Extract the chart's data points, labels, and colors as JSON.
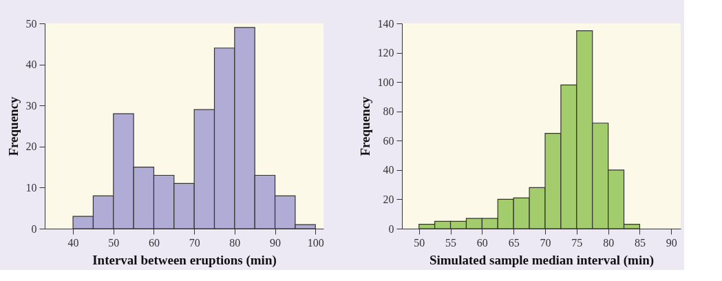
{
  "chart_data": [
    {
      "type": "histogram",
      "xlabel": "Interval between eruptions (min)",
      "ylabel": "Frequency",
      "bins": [
        40,
        45,
        50,
        55,
        60,
        65,
        70,
        75,
        80,
        85,
        90,
        95,
        100
      ],
      "values": [
        3,
        8,
        28,
        15,
        13,
        11,
        29,
        44,
        49,
        13,
        8,
        1
      ],
      "color": "#b0acd6",
      "xlim": [
        33,
        102
      ],
      "xticks": [
        40,
        50,
        60,
        70,
        80,
        90,
        100
      ],
      "ylim": [
        0,
        50
      ],
      "yticks": [
        0,
        10,
        20,
        30,
        40,
        50
      ],
      "grid": false
    },
    {
      "type": "histogram",
      "xlabel": "Simulated sample median interval (min)",
      "ylabel": "Frequency",
      "bins": [
        50,
        52.5,
        55,
        57.5,
        60,
        62.5,
        65,
        67.5,
        70,
        72.5,
        75,
        77.5,
        80,
        82.5,
        85
      ],
      "values": [
        3,
        5,
        5,
        7,
        7,
        20,
        21,
        28,
        65,
        98,
        135,
        72,
        40,
        3
      ],
      "color": "#a3cc6c",
      "xlim": [
        47.3,
        91.5
      ],
      "xticks": [
        50,
        55,
        60,
        65,
        70,
        75,
        80,
        85,
        90
      ],
      "ylim": [
        0,
        140
      ],
      "yticks": [
        0,
        20,
        40,
        60,
        80,
        100,
        120,
        140
      ],
      "grid": false
    }
  ]
}
